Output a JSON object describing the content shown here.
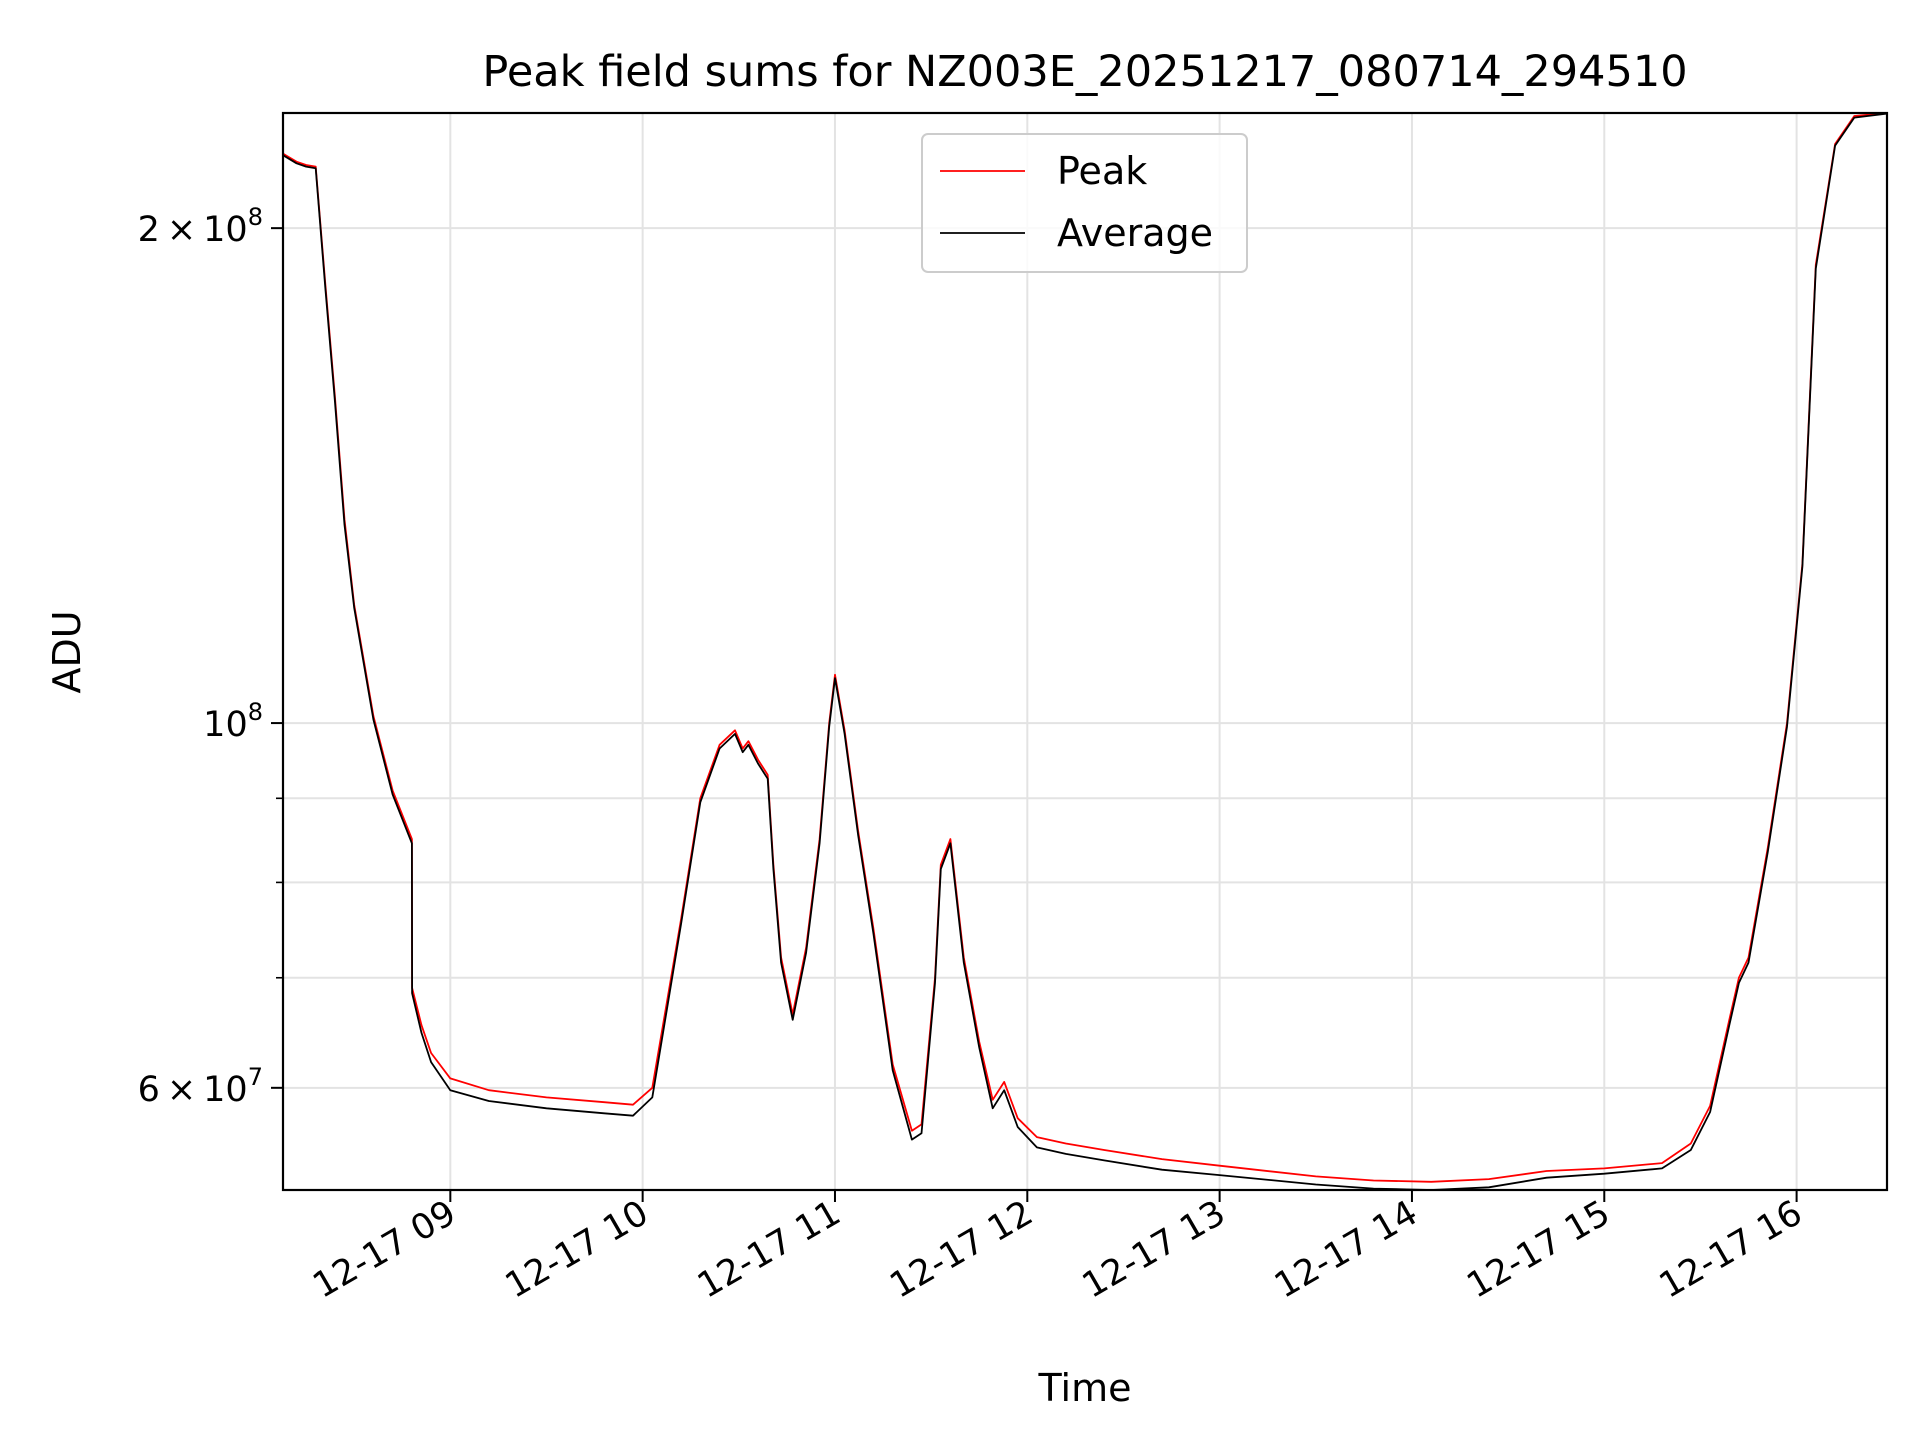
{
  "chart_data": {
    "type": "line",
    "title": "Peak field sums for NZ003E_20251217_080714_294510",
    "xlabel": "Time",
    "ylabel": "ADU",
    "yscale": "log",
    "grid": true,
    "legend_position": "top-center",
    "xlim": [
      8.13,
      16.47
    ],
    "ylim": [
      52000000,
      235000000
    ],
    "x_ticks": [
      {
        "value": 9,
        "label": "12-17 09"
      },
      {
        "value": 10,
        "label": "12-17 10"
      },
      {
        "value": 11,
        "label": "12-17 11"
      },
      {
        "value": 12,
        "label": "12-17 12"
      },
      {
        "value": 13,
        "label": "12-17 13"
      },
      {
        "value": 14,
        "label": "12-17 14"
      },
      {
        "value": 15,
        "label": "12-17 15"
      },
      {
        "value": 16,
        "label": "12-17 16"
      }
    ],
    "y_major_ticks": [
      {
        "value": 60000000,
        "mant": "6",
        "exp": "7"
      },
      {
        "value": 100000000,
        "mant": "",
        "exp": "8"
      },
      {
        "value": 200000000,
        "mant": "2",
        "exp": "8"
      }
    ],
    "y_minor_ticks": [
      70000000,
      80000000,
      90000000
    ],
    "series": [
      {
        "name": "Peak",
        "color": "#ff0000",
        "x": [
          8.13,
          8.2,
          8.25,
          8.3,
          8.35,
          8.4,
          8.45,
          8.5,
          8.6,
          8.7,
          8.8,
          8.801,
          8.85,
          8.9,
          9.0,
          9.2,
          9.5,
          9.8,
          9.95,
          10.05,
          10.2,
          10.3,
          10.4,
          10.48,
          10.52,
          10.55,
          10.6,
          10.65,
          10.68,
          10.72,
          10.78,
          10.85,
          10.92,
          10.97,
          11.0,
          11.05,
          11.12,
          11.2,
          11.3,
          11.4,
          11.45,
          11.52,
          11.55,
          11.6,
          11.67,
          11.75,
          11.82,
          11.88,
          11.95,
          12.05,
          12.2,
          12.4,
          12.7,
          13.0,
          13.5,
          13.8,
          14.1,
          14.4,
          14.7,
          15.0,
          15.3,
          15.45,
          15.55,
          15.65,
          15.7,
          15.75,
          15.85,
          15.95,
          16.03,
          16.1,
          16.2,
          16.3,
          16.47
        ],
        "values": [
          222000000,
          219500000,
          218500000,
          218000000,
          185000000,
          158000000,
          133000000,
          118000000,
          101000000,
          91000000,
          85000000,
          69000000,
          65500000,
          63000000,
          60800000,
          59800000,
          59200000,
          58800000,
          58600000,
          60000000,
          76000000,
          90000000,
          97000000,
          99000000,
          96500000,
          97500000,
          95000000,
          93000000,
          82000000,
          72000000,
          66500000,
          73000000,
          85000000,
          100000000,
          107000000,
          99000000,
          86000000,
          75000000,
          62000000,
          56500000,
          57000000,
          70000000,
          82000000,
          85000000,
          72000000,
          64000000,
          59000000,
          60500000,
          57500000,
          56000000,
          55500000,
          55000000,
          54300000,
          53800000,
          53000000,
          52700000,
          52600000,
          52800000,
          53400000,
          53600000,
          54000000,
          55500000,
          58500000,
          66000000,
          70000000,
          72000000,
          84000000,
          100000000,
          125000000,
          190000000,
          225000000,
          234000000,
          235000000
        ]
      },
      {
        "name": "Average",
        "color": "#000000",
        "x": [
          8.13,
          8.2,
          8.25,
          8.3,
          8.35,
          8.4,
          8.45,
          8.5,
          8.6,
          8.7,
          8.8,
          8.801,
          8.85,
          8.9,
          9.0,
          9.2,
          9.5,
          9.8,
          9.95,
          10.05,
          10.2,
          10.3,
          10.4,
          10.48,
          10.52,
          10.55,
          10.6,
          10.65,
          10.68,
          10.72,
          10.78,
          10.85,
          10.92,
          10.97,
          11.0,
          11.05,
          11.12,
          11.2,
          11.3,
          11.4,
          11.45,
          11.52,
          11.55,
          11.6,
          11.67,
          11.75,
          11.82,
          11.88,
          11.95,
          12.05,
          12.2,
          12.4,
          12.7,
          13.0,
          13.5,
          13.8,
          14.1,
          14.4,
          14.7,
          15.0,
          15.3,
          15.45,
          15.55,
          15.65,
          15.7,
          15.75,
          15.85,
          15.95,
          16.03,
          16.1,
          16.2,
          16.3,
          16.47
        ],
        "values": [
          221500000,
          219000000,
          218000000,
          217500000,
          184000000,
          157000000,
          132000000,
          117500000,
          100500000,
          90500000,
          84500000,
          68500000,
          64800000,
          62200000,
          59800000,
          58900000,
          58300000,
          57900000,
          57700000,
          59200000,
          75500000,
          89500000,
          96500000,
          98500000,
          96000000,
          97000000,
          94500000,
          92500000,
          81500000,
          71500000,
          66000000,
          72500000,
          84500000,
          99500000,
          106500000,
          98500000,
          85500000,
          74500000,
          61500000,
          55800000,
          56300000,
          69500000,
          81500000,
          84500000,
          71500000,
          63500000,
          58300000,
          59800000,
          56800000,
          55200000,
          54700000,
          54200000,
          53500000,
          53100000,
          52400000,
          52100000,
          52000000,
          52200000,
          52900000,
          53200000,
          53600000,
          55000000,
          58000000,
          65500000,
          69500000,
          71500000,
          83500000,
          99500000,
          124500000,
          189000000,
          224500000,
          233500000,
          234800000
        ]
      }
    ]
  }
}
